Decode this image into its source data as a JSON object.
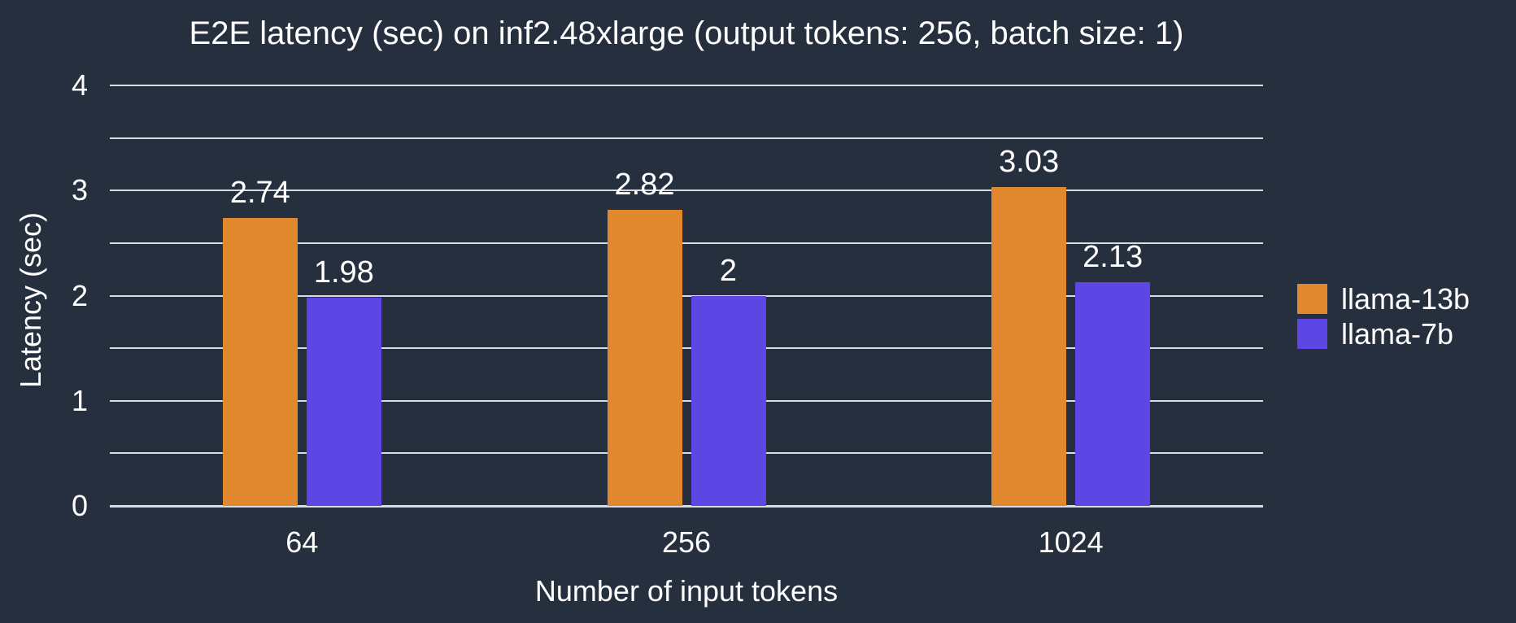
{
  "colors": {
    "background": "#262F3D",
    "gridline": "#D8DCE0",
    "text": "#FFFFFF"
  },
  "chart_data": {
    "type": "bar",
    "title": "E2E latency (sec) on inf2.48xlarge (output tokens: 256, batch size: 1)",
    "xlabel": "Number of input tokens",
    "ylabel": "Latency (sec)",
    "categories": [
      "64",
      "256",
      "1024"
    ],
    "series": [
      {
        "name": "llama-13b",
        "color": "#E1882E",
        "values": [
          2.74,
          2.82,
          3.03
        ],
        "labels": [
          "2.74",
          "2.82",
          "3.03"
        ]
      },
      {
        "name": "llama-7b",
        "color": "#5E46E4",
        "values": [
          1.98,
          2.0,
          2.13
        ],
        "labels": [
          "1.98",
          "2",
          "2.13"
        ]
      }
    ],
    "ylim": [
      0,
      4
    ],
    "y_ticks": [
      0,
      1,
      2,
      3,
      4
    ],
    "grid_step": 0.5,
    "grid": "horizontal-only",
    "legend_position": "right"
  }
}
